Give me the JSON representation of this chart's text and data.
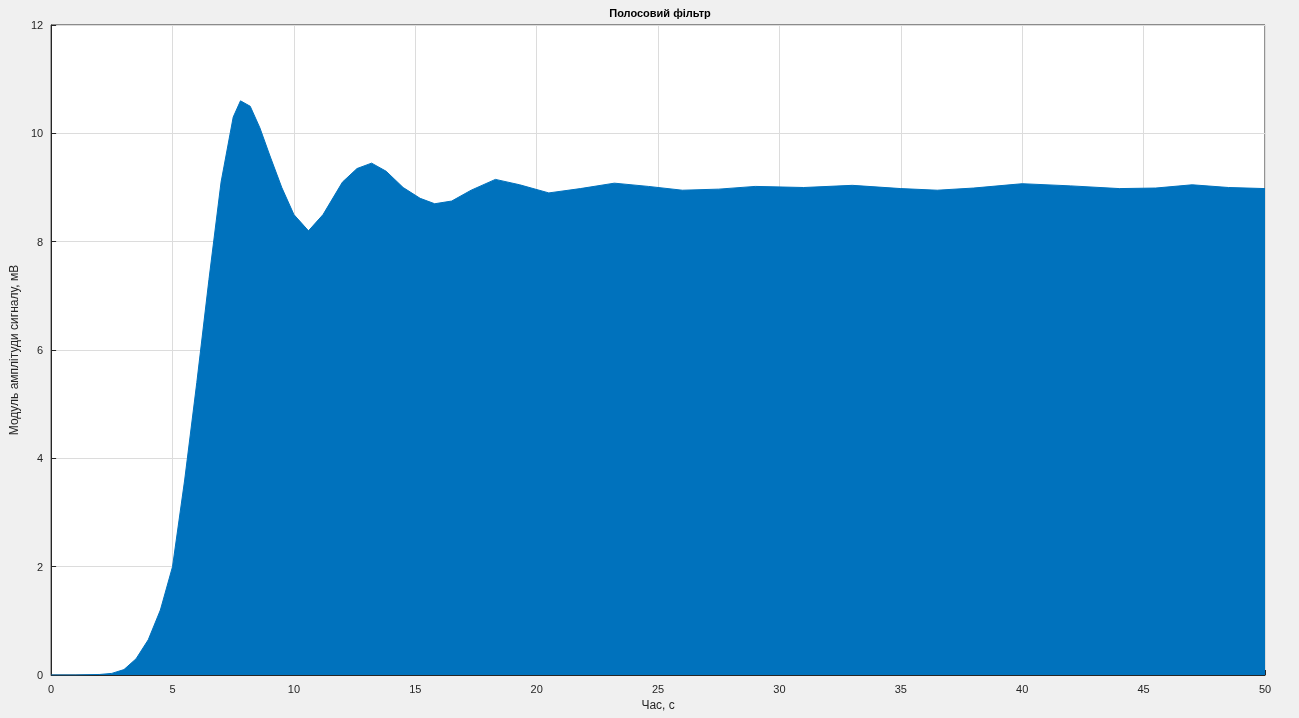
{
  "chart_data": {
    "type": "area",
    "title": "Полосовий фільтр",
    "xlabel": "Час, с",
    "ylabel": "Модуль амплітуди сигналу, мВ",
    "x": [
      0,
      1,
      2,
      2.5,
      3,
      3.5,
      4,
      4.5,
      5,
      5.5,
      6,
      6.5,
      7,
      7.5,
      7.8,
      8.2,
      8.6,
      9,
      9.5,
      10,
      10.6,
      11.2,
      12,
      12.6,
      13.2,
      13.8,
      14.5,
      15.2,
      15.8,
      16.5,
      17.3,
      18.3,
      19.3,
      20.5,
      21.8,
      23.2,
      24.6,
      26,
      27.5,
      29,
      31,
      33,
      35,
      36.5,
      38,
      40,
      42,
      44,
      45.5,
      47,
      48.5,
      50
    ],
    "values": [
      0,
      0,
      0.01,
      0.03,
      0.1,
      0.3,
      0.65,
      1.2,
      2.0,
      3.6,
      5.4,
      7.3,
      9.1,
      10.3,
      10.6,
      10.5,
      10.1,
      9.6,
      9.0,
      8.5,
      8.2,
      8.5,
      9.1,
      9.35,
      9.45,
      9.3,
      9.0,
      8.8,
      8.7,
      8.75,
      8.95,
      9.15,
      9.05,
      8.9,
      8.98,
      9.08,
      9.02,
      8.95,
      8.97,
      9.02,
      9.0,
      9.04,
      8.98,
      8.95,
      8.99,
      9.07,
      9.03,
      8.98,
      8.99,
      9.05,
      9.0,
      8.98
    ],
    "color": "#0072bd",
    "xlim": [
      0,
      50
    ],
    "ylim": [
      0,
      12
    ],
    "xticks": [
      0,
      5,
      10,
      15,
      20,
      25,
      30,
      35,
      40,
      45,
      50
    ],
    "yticks": [
      0,
      2,
      4,
      6,
      8,
      10,
      12
    ],
    "grid": true
  }
}
